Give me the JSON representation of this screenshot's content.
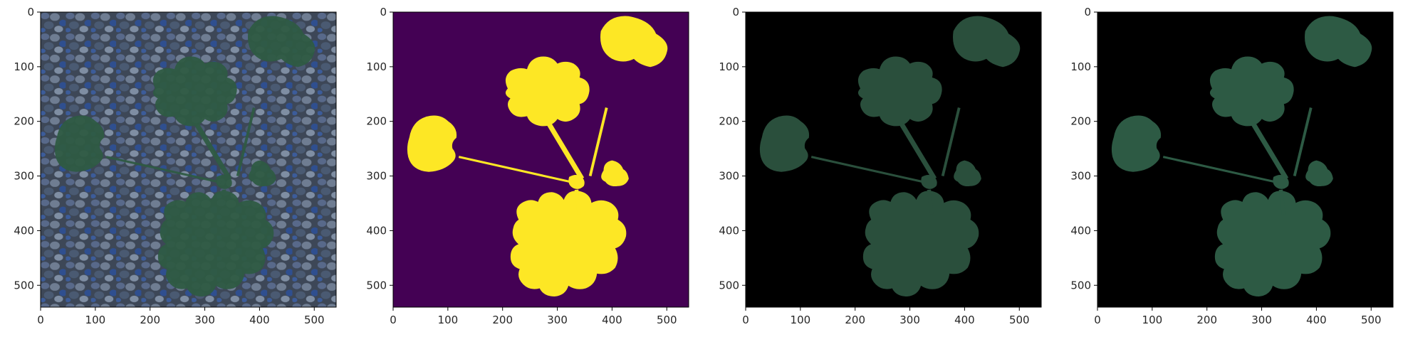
{
  "figure": {
    "panels": [
      {
        "name": "photo",
        "description": "plant-on-gravel",
        "colors": {
          "background": "#3f4a5a",
          "leaf": "#2f5b44",
          "stone": "#5a6f8c"
        },
        "xticks": [
          "0",
          "100",
          "200",
          "300",
          "400",
          "500"
        ],
        "yticks": [
          "0",
          "100",
          "200",
          "300",
          "400",
          "500"
        ]
      },
      {
        "name": "mask",
        "description": "binary-segmentation-mask",
        "colors": {
          "background": "#440154",
          "foreground": "#fde725"
        },
        "xticks": [
          "0",
          "100",
          "200",
          "300",
          "400",
          "500"
        ],
        "yticks": [
          "0",
          "100",
          "200",
          "300",
          "400",
          "500"
        ]
      },
      {
        "name": "masked-photo",
        "description": "segmented-plant-on-black",
        "colors": {
          "background": "#000000",
          "leaf": "#2a4f3c"
        },
        "xticks": [
          "0",
          "100",
          "200",
          "300",
          "400",
          "500"
        ],
        "yticks": [
          "0",
          "100",
          "200",
          "300",
          "400",
          "500"
        ]
      },
      {
        "name": "masked-photo-copy",
        "description": "segmented-plant-on-black",
        "colors": {
          "background": "#000000",
          "leaf": "#2d5a44"
        },
        "xticks": [
          "0",
          "100",
          "200",
          "300",
          "400",
          "500"
        ],
        "yticks": [
          "0",
          "100",
          "200",
          "300",
          "400",
          "500"
        ]
      }
    ],
    "axis_range": {
      "x": [
        0,
        540
      ],
      "y": [
        540,
        0
      ]
    }
  }
}
